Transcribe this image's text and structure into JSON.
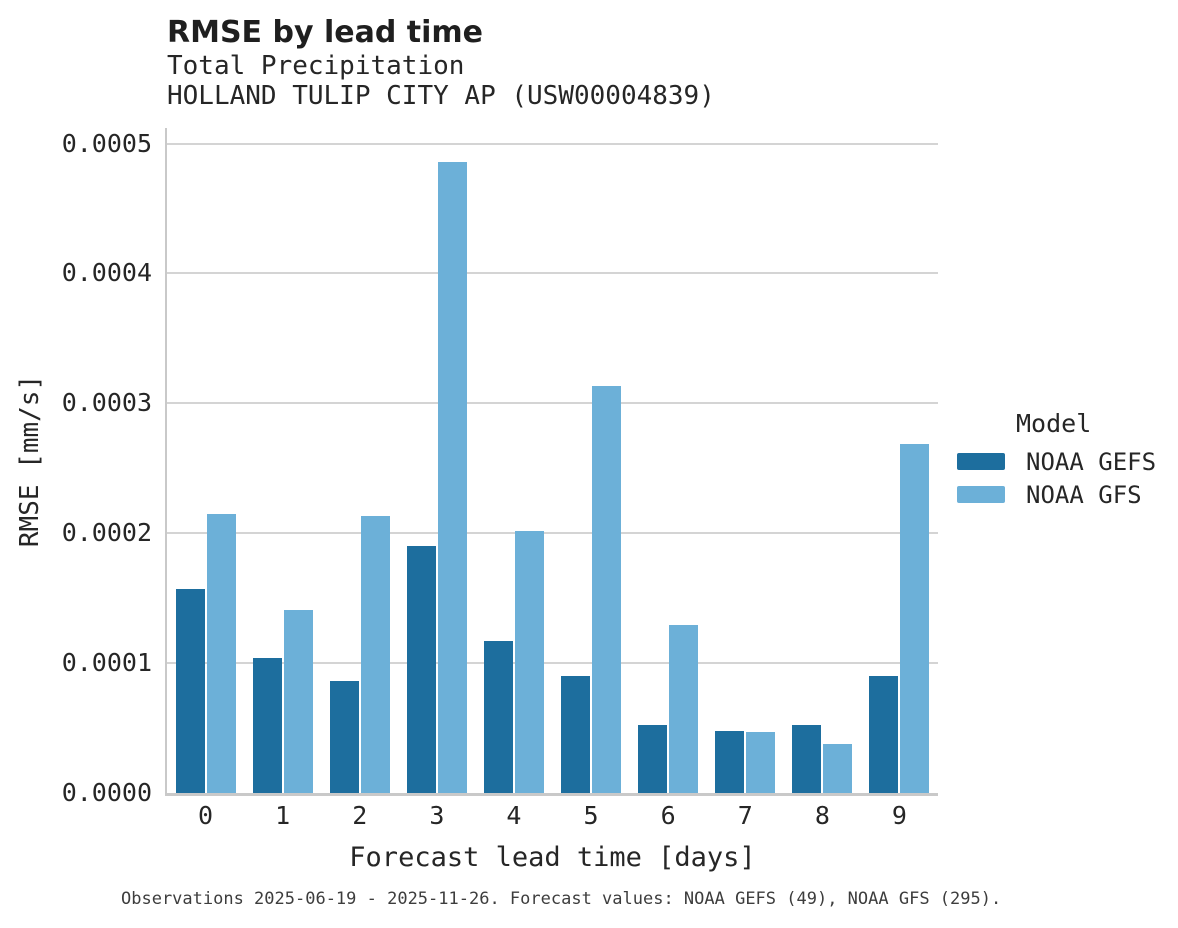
{
  "chart_data": {
    "type": "bar",
    "title": "RMSE by lead time",
    "subtitle_line1": "Total Precipitation",
    "subtitle_line2": "HOLLAND TULIP CITY AP (USW00004839)",
    "xlabel": "Forecast lead time [days]",
    "ylabel": "RMSE [mm/s]",
    "categories": [
      "0",
      "1",
      "2",
      "3",
      "4",
      "5",
      "6",
      "7",
      "8",
      "9"
    ],
    "series": [
      {
        "name": "NOAA GEFS",
        "color": "#1d6e9e",
        "values": [
          0.000157,
          0.000104,
          8.6e-05,
          0.00019,
          0.000117,
          9e-05,
          5.2e-05,
          4.8e-05,
          5.2e-05,
          9e-05
        ]
      },
      {
        "name": "NOAA GFS",
        "color": "#6cb0d8",
        "values": [
          0.000215,
          0.000141,
          0.000213,
          0.000486,
          0.000202,
          0.000313,
          0.000129,
          4.7e-05,
          3.8e-05,
          0.000269
        ]
      }
    ],
    "ylim": [
      0,
      0.000512
    ],
    "yticks": [
      {
        "value": 0.0,
        "label": "0.0000"
      },
      {
        "value": 0.0001,
        "label": "0.0001"
      },
      {
        "value": 0.0002,
        "label": "0.0002"
      },
      {
        "value": 0.0003,
        "label": "0.0003"
      },
      {
        "value": 0.0004,
        "label": "0.0004"
      },
      {
        "value": 0.0005,
        "label": "0.0005"
      }
    ],
    "grid": "horizontal",
    "legend": {
      "title": "Model",
      "position": "right"
    }
  },
  "footnote": "Observations 2025-06-19 - 2025-11-26. Forecast values: NOAA GEFS (49), NOAA GFS (295)."
}
